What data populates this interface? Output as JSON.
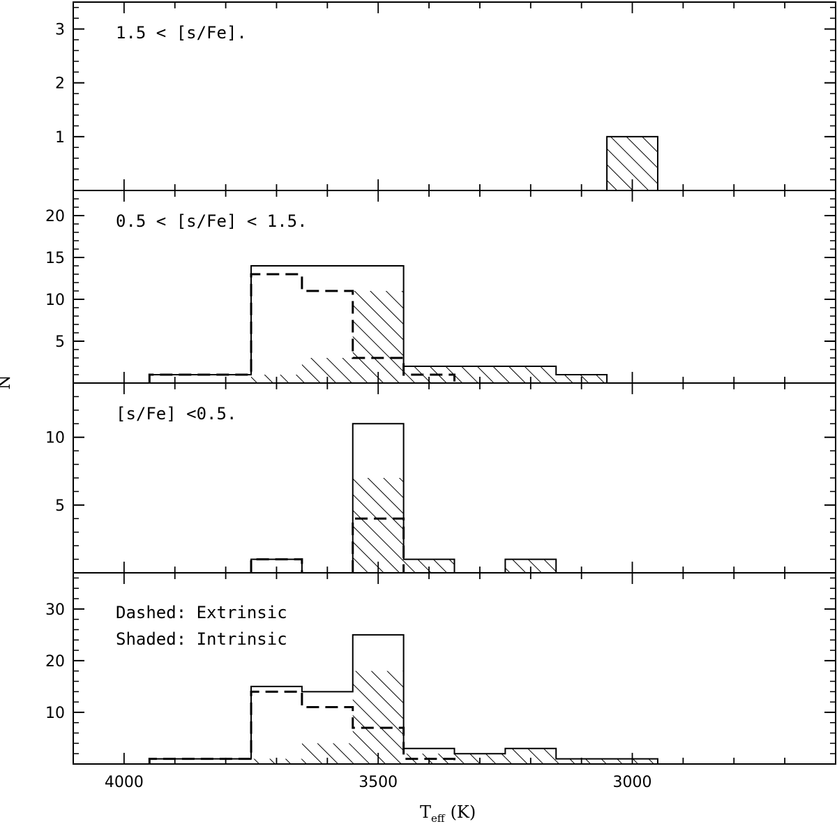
{
  "chart_data": {
    "type": "bar",
    "xlabel_main": "T",
    "xlabel_sub": "eff",
    "xlabel_unit": "(K)",
    "ylabel": "N",
    "xlim": [
      4100,
      2600
    ],
    "x_ticks": [
      4000,
      3500,
      3000
    ],
    "x_tick_labels": [
      "4000",
      "3500",
      "3000"
    ],
    "bin_width": 100,
    "panels": [
      {
        "label": "1.5 < [s/Fe].",
        "ylim": [
          0,
          3.5
        ],
        "y_ticks": [
          1,
          2,
          3
        ],
        "y_tick_labels": [
          "1",
          "2",
          "3"
        ],
        "total": [],
        "extrinsic": [],
        "intrinsic": [
          {
            "x": 3000,
            "y": 1
          }
        ]
      },
      {
        "label": "0.5 < [s/Fe] < 1.5.",
        "ylim": [
          0,
          23
        ],
        "y_ticks": [
          5,
          10,
          15,
          20
        ],
        "y_tick_labels": [
          "5",
          "10",
          "15",
          "20"
        ],
        "total": [
          {
            "x0": 3950,
            "x1": 3750,
            "y": 1
          },
          {
            "x0": 3750,
            "x1": 3450,
            "y": 14
          },
          {
            "x0": 3450,
            "x1": 3150,
            "y": 2
          },
          {
            "x0": 3150,
            "x1": 3050,
            "y": 1
          }
        ],
        "extrinsic": [
          {
            "x0": 3950,
            "x1": 3750,
            "y": 1
          },
          {
            "x0": 3750,
            "x1": 3650,
            "y": 13
          },
          {
            "x0": 3650,
            "x1": 3550,
            "y": 11
          },
          {
            "x0": 3550,
            "x1": 3450,
            "y": 3
          },
          {
            "x0": 3450,
            "x1": 3350,
            "y": 1
          }
        ],
        "intrinsic": [
          {
            "x": 3700,
            "y": 1
          },
          {
            "x": 3600,
            "y": 3
          },
          {
            "x": 3500,
            "y": 11
          },
          {
            "x": 3400,
            "y": 2
          },
          {
            "x": 3300,
            "y": 2
          },
          {
            "x": 3200,
            "y": 2
          },
          {
            "x": 3100,
            "y": 1
          }
        ]
      },
      {
        "label": "[s/Fe] <0.5.",
        "ylim": [
          0,
          14
        ],
        "y_ticks": [
          5,
          10
        ],
        "y_tick_labels": [
          "5",
          "10"
        ],
        "total": [
          {
            "x0": 3750,
            "x1": 3650,
            "y": 1
          },
          {
            "x0": 3550,
            "x1": 3450,
            "y": 11
          },
          {
            "x0": 3450,
            "x1": 3350,
            "y": 1
          },
          {
            "x0": 3250,
            "x1": 3150,
            "y": 1
          }
        ],
        "extrinsic": [
          {
            "x0": 3750,
            "x1": 3650,
            "y": 1
          },
          {
            "x0": 3550,
            "x1": 3450,
            "y": 4
          }
        ],
        "intrinsic": [
          {
            "x": 3500,
            "y": 7
          },
          {
            "x": 3400,
            "y": 1
          },
          {
            "x": 3200,
            "y": 1
          }
        ]
      },
      {
        "label": "Dashed: Extrinsic",
        "label2": "Shaded: Intrinsic",
        "ylim": [
          0,
          37
        ],
        "y_ticks": [
          10,
          20,
          30
        ],
        "y_tick_labels": [
          "10",
          "20",
          "30"
        ],
        "total": [
          {
            "x0": 3950,
            "x1": 3750,
            "y": 1
          },
          {
            "x0": 3750,
            "x1": 3650,
            "y": 15
          },
          {
            "x0": 3650,
            "x1": 3550,
            "y": 14
          },
          {
            "x0": 3550,
            "x1": 3450,
            "y": 25
          },
          {
            "x0": 3450,
            "x1": 3350,
            "y": 3
          },
          {
            "x0": 3350,
            "x1": 3250,
            "y": 2
          },
          {
            "x0": 3250,
            "x1": 3150,
            "y": 3
          },
          {
            "x0": 3150,
            "x1": 2950,
            "y": 1
          }
        ],
        "extrinsic": [
          {
            "x0": 3950,
            "x1": 3750,
            "y": 1
          },
          {
            "x0": 3750,
            "x1": 3650,
            "y": 14
          },
          {
            "x0": 3650,
            "x1": 3550,
            "y": 11
          },
          {
            "x0": 3550,
            "x1": 3450,
            "y": 7
          },
          {
            "x0": 3450,
            "x1": 3350,
            "y": 1
          }
        ],
        "intrinsic": [
          {
            "x": 3700,
            "y": 1
          },
          {
            "x": 3600,
            "y": 4
          },
          {
            "x": 3500,
            "y": 18
          },
          {
            "x": 3400,
            "y": 2
          },
          {
            "x": 3300,
            "y": 2
          },
          {
            "x": 3200,
            "y": 3
          },
          {
            "x": 3100,
            "y": 1
          },
          {
            "x": 3000,
            "y": 1
          }
        ]
      }
    ]
  }
}
